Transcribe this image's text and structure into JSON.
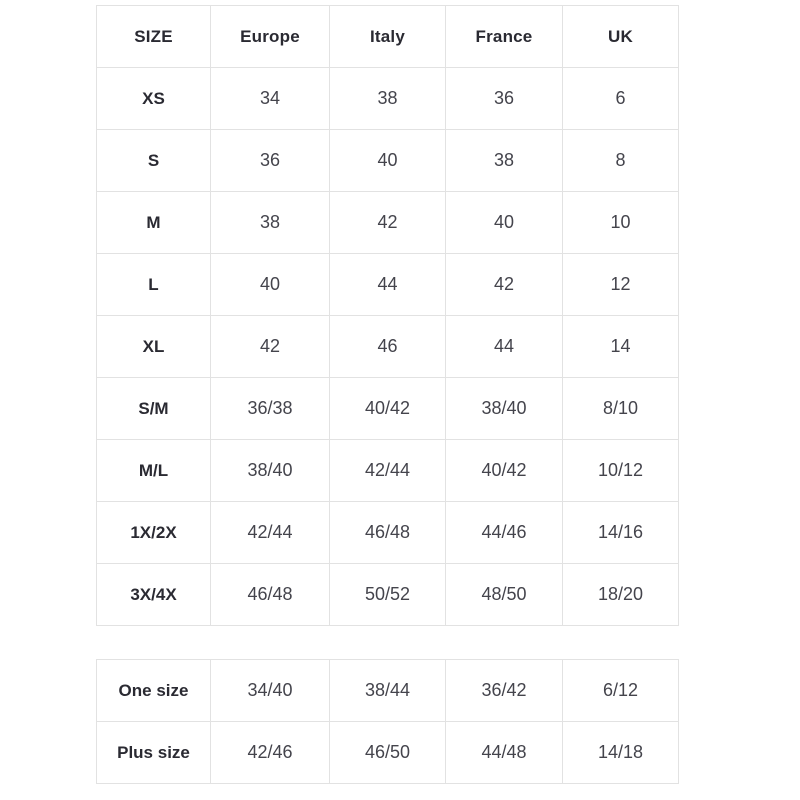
{
  "size_chart": {
    "columns": [
      "SIZE",
      "Europe",
      "Italy",
      "France",
      "UK"
    ],
    "rows": [
      {
        "size": "XS",
        "values": [
          "34",
          "38",
          "36",
          "6"
        ]
      },
      {
        "size": "S",
        "values": [
          "36",
          "40",
          "38",
          "8"
        ]
      },
      {
        "size": "M",
        "values": [
          "38",
          "42",
          "40",
          "10"
        ]
      },
      {
        "size": "L",
        "values": [
          "40",
          "44",
          "42",
          "12"
        ]
      },
      {
        "size": "XL",
        "values": [
          "42",
          "46",
          "44",
          "14"
        ]
      },
      {
        "size": "S/M",
        "values": [
          "36/38",
          "40/42",
          "38/40",
          "8/10"
        ]
      },
      {
        "size": "M/L",
        "values": [
          "38/40",
          "42/44",
          "40/42",
          "10/12"
        ]
      },
      {
        "size": "1X/2X",
        "values": [
          "42/44",
          "46/48",
          "44/46",
          "14/16"
        ]
      },
      {
        "size": "3X/4X",
        "values": [
          "46/48",
          "50/52",
          "48/50",
          "18/20"
        ]
      }
    ],
    "extra_rows": [
      {
        "size": "One size",
        "values": [
          "34/40",
          "38/44",
          "36/42",
          "6/12"
        ]
      },
      {
        "size": "Plus size",
        "values": [
          "42/46",
          "46/50",
          "44/48",
          "14/18"
        ]
      }
    ]
  },
  "colors": {
    "background": "#ffffff",
    "border": "#e2e2e2",
    "header_text": "#2a2a32",
    "cell_text": "#44444c"
  }
}
